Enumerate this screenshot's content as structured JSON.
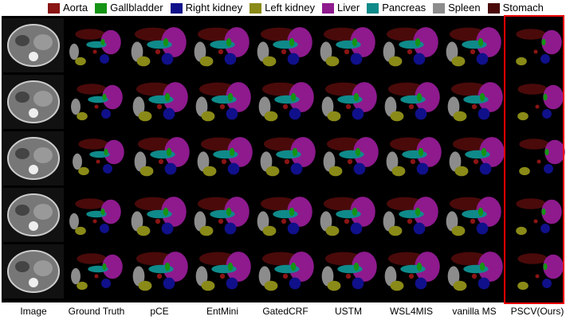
{
  "legend": [
    {
      "name": "Aorta",
      "color": "#8b1414"
    },
    {
      "name": "Gallbladder",
      "color": "#149414"
    },
    {
      "name": "Right kidney",
      "color": "#10108a"
    },
    {
      "name": "Left kidney",
      "color": "#8a8a18"
    },
    {
      "name": "Liver",
      "color": "#8e1a8e"
    },
    {
      "name": "Pancreas",
      "color": "#0f8a8a"
    },
    {
      "name": "Spleen",
      "color": "#8c8c8c"
    },
    {
      "name": "Stomach",
      "color": "#4a0a0a"
    }
  ],
  "columns": [
    "Image",
    "Ground Truth",
    "pCE",
    "EntMini",
    "GatedCRF",
    "USTM",
    "WSL4MIS",
    "vanilla MS",
    "PSCV(Ours)"
  ]
}
